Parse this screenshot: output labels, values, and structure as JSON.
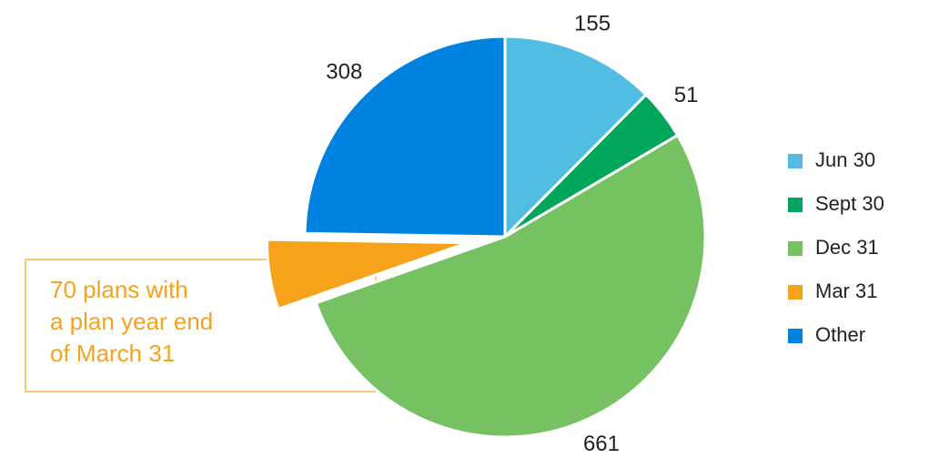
{
  "chart_data": {
    "type": "pie",
    "categories": [
      "Jun 30",
      "Sept 30",
      "Dec 31",
      "Mar 31",
      "Other"
    ],
    "values": [
      155,
      51,
      661,
      70,
      308
    ],
    "value_labels": [
      "155",
      "51",
      "661",
      null,
      "308"
    ],
    "colors": [
      "#52bde3",
      "#00a65a",
      "#76c263",
      "#f7a21b",
      "#0082e0"
    ],
    "exploded": "Mar 31",
    "legend": "right",
    "annotation": [
      "70 plans with",
      "a plan year end",
      "of March 31"
    ]
  }
}
